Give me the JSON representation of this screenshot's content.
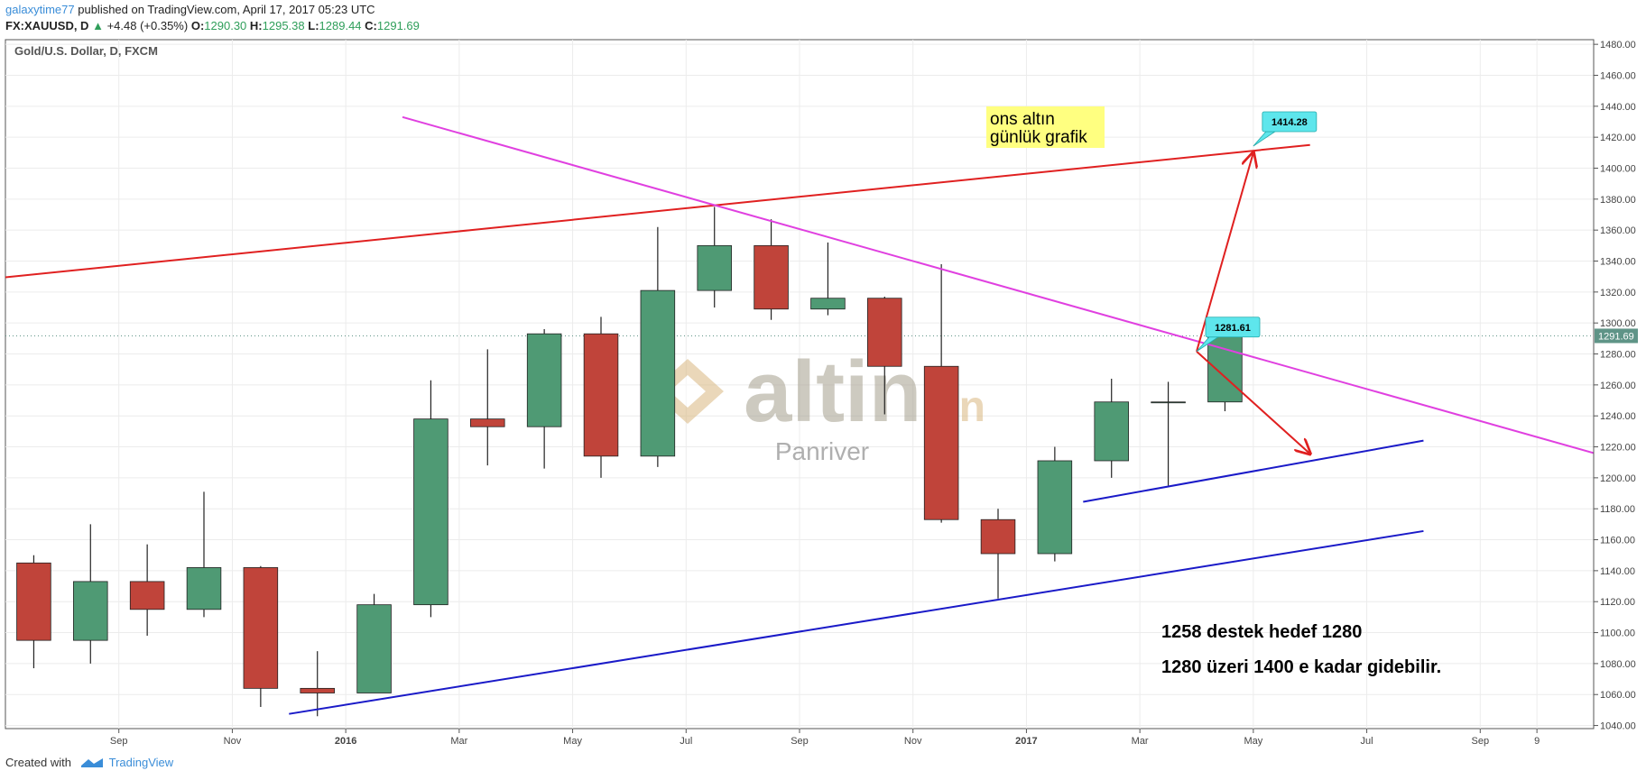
{
  "header": {
    "author": "galaxytime77",
    "published": "published on TradingView.com, April 17, 2017 05:23 UTC",
    "symbol": "FX:XAUUSD, D",
    "change_icon": "▲",
    "change": "+4.48 (+0.35%)",
    "ohlc": [
      {
        "key": "O:",
        "value": "1290.30"
      },
      {
        "key": "H:",
        "value": "1295.38"
      },
      {
        "key": "L:",
        "value": "1289.44"
      },
      {
        "key": "C:",
        "value": "1291.69"
      }
    ]
  },
  "footer": {
    "created": "Created with",
    "brand": "TradingView"
  },
  "watermark": {
    "brand": "altin",
    "domain": ".in",
    "sub": "Panriver"
  },
  "chart_data": {
    "type": "candlestick",
    "title": "Gold/U.S. Dollar, D, FXCM",
    "x": [
      "2015-07",
      "2015-08",
      "2015-09",
      "2015-10",
      "2015-11",
      "2015-12",
      "2016-01",
      "2016-02",
      "2016-03",
      "2016-04",
      "2016-05",
      "2016-06",
      "2016-07",
      "2016-08",
      "2016-09",
      "2016-10",
      "2016-11",
      "2016-12",
      "2017-01",
      "2017-02",
      "2017-03",
      "2017-04"
    ],
    "open": [
      1145,
      1095,
      1133,
      1115,
      1142,
      1064,
      1061,
      1118,
      1238,
      1233,
      1293,
      1214,
      1321,
      1350,
      1309,
      1316,
      1272,
      1173,
      1151,
      1211,
      1249,
      1249
    ],
    "high": [
      1150,
      1170,
      1157,
      1191,
      1143,
      1088,
      1125,
      1263,
      1283,
      1296,
      1304,
      1362,
      1375,
      1367,
      1352,
      1317,
      1338,
      1180,
      1220,
      1264,
      1262,
      1295
    ],
    "low": [
      1077,
      1080,
      1098,
      1110,
      1052,
      1046,
      1061,
      1110,
      1208,
      1206,
      1200,
      1207,
      1310,
      1302,
      1305,
      1241,
      1171,
      1122,
      1146,
      1200,
      1195,
      1243
    ],
    "close": [
      1095,
      1133,
      1115,
      1142,
      1064,
      1061,
      1118,
      1238,
      1233,
      1293,
      1214,
      1321,
      1350,
      1309,
      1316,
      1272,
      1173,
      1151,
      1211,
      1249,
      1249,
      1291
    ],
    "up_color": "#4f9a74",
    "down_color": "#c0443a",
    "xlim": [
      "2015-07",
      "2017-11"
    ],
    "xticks": [
      {
        "value": "2015-09",
        "label": "Sep"
      },
      {
        "value": "2015-11",
        "label": "Nov"
      },
      {
        "value": "2016-01",
        "label": "2016"
      },
      {
        "value": "2016-03",
        "label": "Mar"
      },
      {
        "value": "2016-05",
        "label": "May"
      },
      {
        "value": "2016-07",
        "label": "Jul"
      },
      {
        "value": "2016-09",
        "label": "Sep"
      },
      {
        "value": "2016-11",
        "label": "Nov"
      },
      {
        "value": "2017-01",
        "label": "2017"
      },
      {
        "value": "2017-03",
        "label": "Mar"
      },
      {
        "value": "2017-05",
        "label": "May"
      },
      {
        "value": "2017-07",
        "label": "Jul"
      },
      {
        "value": "2017-09",
        "label": "Sep"
      },
      {
        "value": "2017-10",
        "label": "9"
      }
    ],
    "ylim": [
      1038,
      1483
    ],
    "yticks": [
      {
        "value": 1040,
        "label": "1040.00"
      },
      {
        "value": 1060,
        "label": "1060.00"
      },
      {
        "value": 1080,
        "label": "1080.00"
      },
      {
        "value": 1100,
        "label": "1100.00"
      },
      {
        "value": 1120,
        "label": "1120.00"
      },
      {
        "value": 1140,
        "label": "1140.00"
      },
      {
        "value": 1160,
        "label": "1160.00"
      },
      {
        "value": 1180,
        "label": "1180.00"
      },
      {
        "value": 1200,
        "label": "1200.00"
      },
      {
        "value": 1220,
        "label": "1220.00"
      },
      {
        "value": 1240,
        "label": "1240.00"
      },
      {
        "value": 1260,
        "label": "1260.00"
      },
      {
        "value": 1280,
        "label": "1280.00"
      },
      {
        "value": 1300,
        "label": "1300.00"
      },
      {
        "value": 1320,
        "label": "1320.00"
      },
      {
        "value": 1340,
        "label": "1340.00"
      },
      {
        "value": 1360,
        "label": "1360.00"
      },
      {
        "value": 1380,
        "label": "1380.00"
      },
      {
        "value": 1400,
        "label": "1400.00"
      },
      {
        "value": 1420,
        "label": "1420.00"
      },
      {
        "value": 1440,
        "label": "1440.00"
      },
      {
        "value": 1460,
        "label": "1460.00"
      },
      {
        "value": 1480,
        "label": "1480.00"
      }
    ],
    "grid": true,
    "last_price": {
      "value": 1291.69,
      "color": "#5f9487"
    },
    "trendlines": [
      {
        "color": "#e02020",
        "x": [
          "2015-07",
          "2017-06"
        ],
        "values": [
          1329.5,
          1415
        ]
      },
      {
        "color": "#e040e0",
        "x": [
          "2016-02",
          "2017-11"
        ],
        "values": [
          1433,
          1216
        ]
      },
      {
        "color": "#1a1ac8",
        "x": [
          "2015-12",
          "2017-08"
        ],
        "values": [
          1047.5,
          1165.6
        ]
      },
      {
        "color": "#1a1ac8",
        "x": [
          "2017-02",
          "2017-08"
        ],
        "values": [
          1184.5,
          1224
        ]
      }
    ],
    "arrows": [
      {
        "color": "#e02020",
        "x": [
          "2017-04",
          "2017-05"
        ],
        "values": [
          1281.6,
          1410
        ]
      },
      {
        "color": "#e02020",
        "x": [
          "2017-04",
          "2017-06"
        ],
        "values": [
          1281.6,
          1215.5
        ]
      }
    ],
    "callouts": [
      {
        "x": "2017-05",
        "value": 1414.28,
        "color": "#5ee6ec"
      },
      {
        "x": "2017-04",
        "value": 1281.61,
        "color": "#5ee6ec"
      }
    ],
    "note_box": {
      "lines": [
        "ons altın",
        "günlük grafik"
      ],
      "color": "#ffff80"
    },
    "notes": [
      "1258 destek hedef 1280",
      "1280 üzeri 1400 e kadar gidebilir."
    ]
  }
}
